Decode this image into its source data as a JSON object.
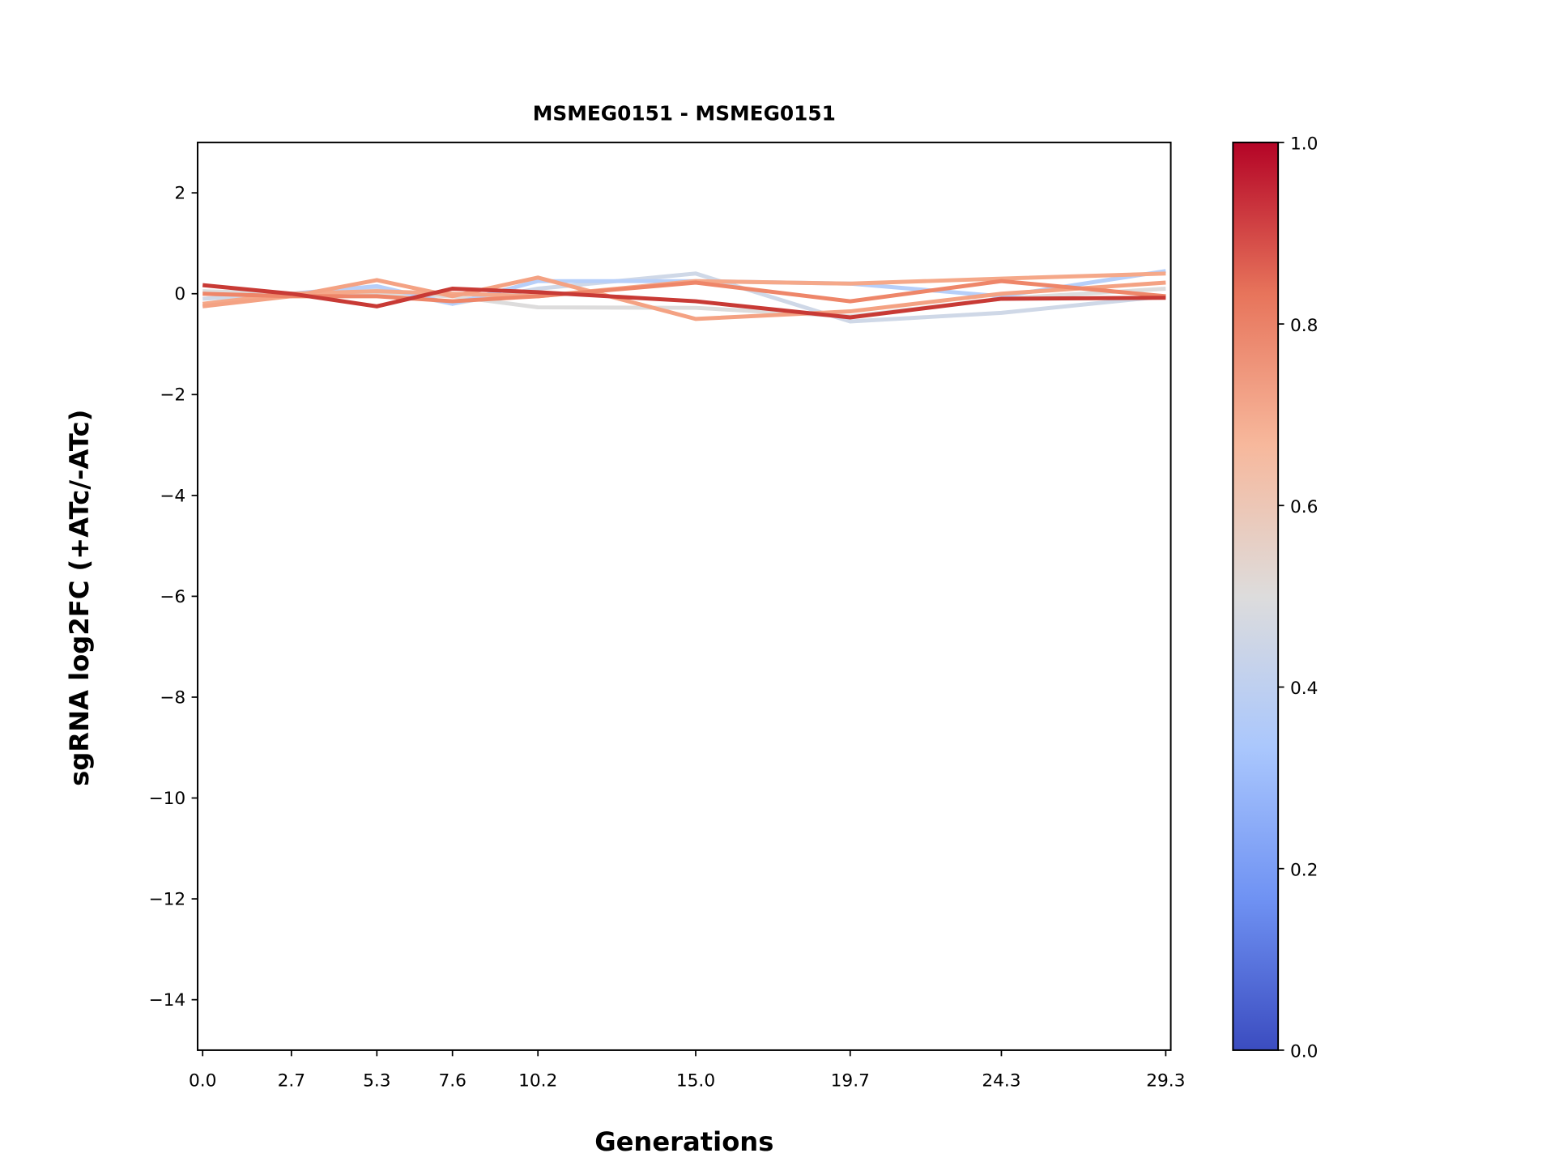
{
  "chart_data": {
    "type": "line",
    "title": "MSMEG0151 - MSMEG0151",
    "xlabel": "Generations",
    "ylabel": "sgRNA log2FC (+ATc/-ATc)",
    "x": [
      0.0,
      2.7,
      5.3,
      7.6,
      10.2,
      15.0,
      19.7,
      24.3,
      29.3
    ],
    "x_tick_labels": [
      "0.0",
      "2.7",
      "5.3",
      "7.6",
      "10.2",
      "15.0",
      "19.7",
      "24.3",
      "29.3"
    ],
    "xlim": [
      -0.2,
      29.5
    ],
    "ylim": [
      -15,
      3
    ],
    "y_ticks": [
      2,
      0,
      -2,
      -4,
      -6,
      -8,
      -10,
      -12,
      -14
    ],
    "y_tick_labels": [
      "2",
      "0",
      "−2",
      "−4",
      "−6",
      "−8",
      "−10",
      "−12",
      "−14"
    ],
    "grid": false,
    "series": [
      {
        "color_value": 0.45,
        "color": "#cfd8e7",
        "values": [
          -0.1,
          0.0,
          0.1,
          -0.2,
          0.1,
          0.4,
          -0.55,
          -0.38,
          -0.05
        ]
      },
      {
        "color_value": 0.5,
        "color": "#dddcdc",
        "values": [
          0.05,
          0.0,
          0.0,
          -0.05,
          -0.27,
          -0.28,
          -0.45,
          -0.1,
          0.1
        ]
      },
      {
        "color_value": 0.35,
        "color": "#b7cff9",
        "values": [
          -0.25,
          0.0,
          0.15,
          -0.2,
          0.25,
          0.25,
          0.2,
          -0.05,
          0.45
        ]
      },
      {
        "color_value": 0.7,
        "color": "#f5a889",
        "values": [
          -0.2,
          0.0,
          0.05,
          0.0,
          -0.05,
          0.25,
          0.2,
          0.3,
          0.4
        ]
      },
      {
        "color_value": 0.75,
        "color": "#f4a283",
        "values": [
          -0.25,
          -0.05,
          0.27,
          -0.05,
          0.32,
          -0.5,
          -0.35,
          0.0,
          0.22
        ]
      },
      {
        "color_value": 0.8,
        "color": "#ee8669",
        "values": [
          0.0,
          -0.05,
          -0.05,
          -0.15,
          -0.05,
          0.22,
          -0.15,
          0.25,
          -0.05
        ]
      },
      {
        "color_value": 0.95,
        "color": "#c83a35",
        "values": [
          0.17,
          0.0,
          -0.25,
          0.1,
          0.03,
          -0.15,
          -0.47,
          -0.1,
          -0.08
        ]
      }
    ],
    "colorbar": {
      "colormap": "coolwarm",
      "range": [
        0.0,
        1.0
      ],
      "ticks": [
        0.0,
        0.2,
        0.4,
        0.6,
        0.8,
        1.0
      ],
      "tick_labels": [
        "0.0",
        "0.2",
        "0.4",
        "0.6",
        "0.8",
        "1.0"
      ],
      "colors": [
        "#3b4cc0",
        "#6f92f3",
        "#aac7fd",
        "#dddcdc",
        "#f7b89c",
        "#e7745b",
        "#b40426"
      ]
    }
  }
}
